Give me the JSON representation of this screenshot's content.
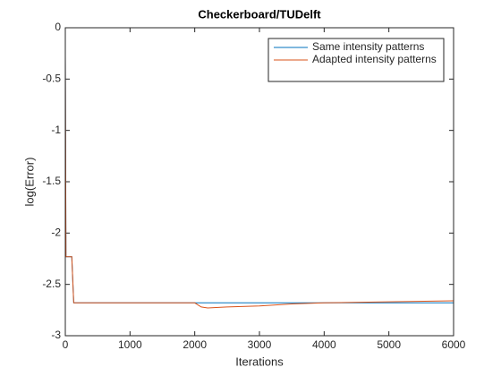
{
  "chart_data": {
    "type": "line",
    "title": "Checkerboard/TUDelft",
    "x_label": "Iterations",
    "y_label": "log(Error)",
    "x": [
      0,
      10,
      100,
      130,
      2000,
      2100,
      2200,
      2500,
      3000,
      3500,
      4000,
      5000,
      6000
    ],
    "series": [
      {
        "name": "Same intensity patterns",
        "color": "#0072bd",
        "values": [
          -0.27,
          -2.23,
          -2.23,
          -2.68,
          -2.68,
          -2.68,
          -2.68,
          -2.68,
          -2.68,
          -2.68,
          -2.68,
          -2.68,
          -2.68
        ]
      },
      {
        "name": "Adapted intensity patterns",
        "color": "#d95319",
        "values": [
          -0.27,
          -2.23,
          -2.23,
          -2.68,
          -2.68,
          -2.72,
          -2.73,
          -2.72,
          -2.71,
          -2.69,
          -2.68,
          -2.67,
          -2.66
        ]
      }
    ],
    "xlim": [
      0,
      6000
    ],
    "xticks": [
      0,
      1000,
      2000,
      3000,
      4000,
      5000,
      6000
    ],
    "ylim": [
      -3,
      0
    ],
    "yticks": [
      -3,
      -2.5,
      -2,
      -1.5,
      -1,
      -0.5,
      0
    ],
    "grid": false,
    "legend": "northeast"
  }
}
